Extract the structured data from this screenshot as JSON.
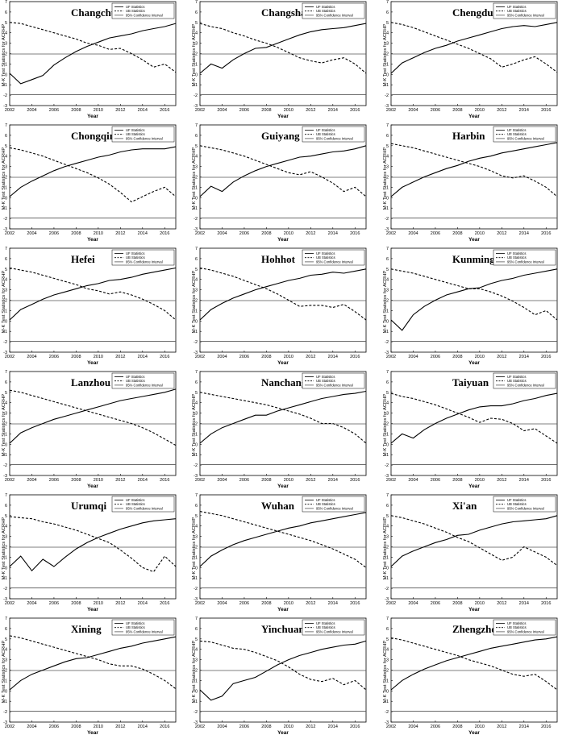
{
  "chart_data": {
    "layout": "grid",
    "rows": 6,
    "cols": 3,
    "shared": {
      "type": "line",
      "xlabel": "Year",
      "ylabel": "M-K Test Statistics for ACRHP",
      "xlim": [
        2002,
        2017
      ],
      "ylim": [
        -3,
        7
      ],
      "xticks": [
        2002,
        2004,
        2006,
        2008,
        2010,
        2012,
        2014,
        2016
      ],
      "yticks": [
        -3,
        -2,
        -1,
        0,
        1,
        2,
        3,
        4,
        5,
        6,
        7
      ],
      "confidence_levels": [
        1.96,
        -1.96
      ],
      "legend": [
        "UF Statistics",
        "UB Statistics",
        "95% Confidence Interval"
      ],
      "legend_position": "top-right",
      "colors": {
        "line": "#000000",
        "axis": "#000000",
        "confidence": "#555555"
      }
    },
    "charts": [
      {
        "title": "Changchun",
        "x": [
          2002,
          2003,
          2004,
          2005,
          2006,
          2007,
          2008,
          2009,
          2010,
          2011,
          2012,
          2013,
          2014,
          2015,
          2016,
          2017
        ],
        "uf": [
          0.1,
          -0.9,
          -0.5,
          -0.1,
          0.9,
          1.6,
          2.2,
          2.7,
          3.1,
          3.5,
          3.7,
          3.9,
          4.2,
          4.4,
          4.6,
          4.9
        ],
        "ub": [
          5.0,
          4.9,
          4.6,
          4.3,
          4.0,
          3.7,
          3.4,
          3.0,
          2.8,
          2.4,
          2.5,
          2.0,
          1.4,
          0.7,
          1.0,
          0.2
        ]
      },
      {
        "title": "Changsha",
        "x": [
          2002,
          2003,
          2004,
          2005,
          2006,
          2007,
          2008,
          2009,
          2010,
          2011,
          2012,
          2013,
          2014,
          2015,
          2016,
          2017
        ],
        "uf": [
          0.1,
          1.0,
          0.6,
          1.4,
          2.0,
          2.5,
          2.6,
          3.0,
          3.4,
          3.8,
          4.1,
          4.3,
          4.4,
          4.5,
          4.7,
          4.9
        ],
        "ub": [
          4.9,
          4.6,
          4.4,
          4.0,
          3.7,
          3.3,
          3.0,
          2.6,
          2.1,
          1.6,
          1.3,
          1.1,
          1.4,
          1.6,
          1.0,
          0.1
        ]
      },
      {
        "title": "Chengdu",
        "x": [
          2002,
          2003,
          2004,
          2005,
          2006,
          2007,
          2008,
          2009,
          2010,
          2011,
          2012,
          2013,
          2014,
          2015,
          2016,
          2017
        ],
        "uf": [
          0.1,
          1.1,
          1.6,
          2.1,
          2.5,
          2.8,
          3.2,
          3.5,
          3.8,
          4.1,
          4.4,
          4.6,
          4.7,
          4.6,
          4.8,
          5.0
        ],
        "ub": [
          5.0,
          4.8,
          4.5,
          4.1,
          3.7,
          3.3,
          2.9,
          2.5,
          2.0,
          1.5,
          0.7,
          1.0,
          1.4,
          1.7,
          1.0,
          0.2
        ]
      },
      {
        "title": "Chongqing",
        "x": [
          2002,
          2003,
          2004,
          2005,
          2006,
          2007,
          2008,
          2009,
          2010,
          2011,
          2012,
          2013,
          2014,
          2015,
          2016,
          2017
        ],
        "uf": [
          0.1,
          1.0,
          1.6,
          2.1,
          2.6,
          3.0,
          3.3,
          3.6,
          3.9,
          4.1,
          4.4,
          4.6,
          4.7,
          4.7,
          4.7,
          4.9
        ],
        "ub": [
          4.8,
          4.6,
          4.3,
          4.0,
          3.6,
          3.2,
          2.8,
          2.4,
          1.9,
          1.3,
          0.5,
          -0.4,
          0.1,
          0.6,
          1.0,
          0.1
        ]
      },
      {
        "title": "Guiyang",
        "x": [
          2002,
          2003,
          2004,
          2005,
          2006,
          2007,
          2008,
          2009,
          2010,
          2011,
          2012,
          2013,
          2014,
          2015,
          2016,
          2017
        ],
        "uf": [
          0.1,
          1.1,
          0.6,
          1.5,
          2.1,
          2.6,
          3.0,
          3.3,
          3.6,
          3.9,
          4.0,
          4.2,
          4.4,
          4.5,
          4.7,
          5.0
        ],
        "ub": [
          5.0,
          4.8,
          4.6,
          4.3,
          4.0,
          3.6,
          3.2,
          2.8,
          2.4,
          2.2,
          2.5,
          2.0,
          1.4,
          0.6,
          1.0,
          0.1
        ]
      },
      {
        "title": "Harbin",
        "x": [
          2002,
          2003,
          2004,
          2005,
          2006,
          2007,
          2008,
          2009,
          2010,
          2011,
          2012,
          2013,
          2014,
          2015,
          2016,
          2017
        ],
        "uf": [
          0.1,
          1.0,
          1.5,
          2.0,
          2.4,
          2.8,
          3.1,
          3.5,
          3.8,
          4.0,
          4.3,
          4.5,
          4.7,
          4.9,
          5.1,
          5.3
        ],
        "ub": [
          5.2,
          5.0,
          4.8,
          4.5,
          4.2,
          3.9,
          3.6,
          3.3,
          3.0,
          2.6,
          2.1,
          1.9,
          2.1,
          1.6,
          1.0,
          0.1
        ]
      },
      {
        "title": "Hefei",
        "x": [
          2002,
          2003,
          2004,
          2005,
          2006,
          2007,
          2008,
          2009,
          2010,
          2011,
          2012,
          2013,
          2014,
          2015,
          2016,
          2017
        ],
        "uf": [
          0.1,
          1.1,
          1.6,
          2.1,
          2.5,
          2.8,
          3.1,
          3.4,
          3.6,
          3.9,
          4.0,
          4.2,
          4.5,
          4.7,
          4.9,
          5.1
        ],
        "ub": [
          5.1,
          4.9,
          4.7,
          4.4,
          4.1,
          3.8,
          3.5,
          3.1,
          2.9,
          2.6,
          2.8,
          2.5,
          2.1,
          1.6,
          1.0,
          0.1
        ]
      },
      {
        "title": "Hohhot",
        "x": [
          2002,
          2003,
          2004,
          2005,
          2006,
          2007,
          2008,
          2009,
          2010,
          2011,
          2012,
          2013,
          2014,
          2015,
          2016,
          2017
        ],
        "uf": [
          0.1,
          1.1,
          1.7,
          2.2,
          2.6,
          3.0,
          3.3,
          3.6,
          3.9,
          4.1,
          4.4,
          4.5,
          4.7,
          4.6,
          4.8,
          5.0
        ],
        "ub": [
          5.1,
          4.9,
          4.6,
          4.3,
          3.9,
          3.5,
          3.1,
          2.6,
          2.0,
          1.4,
          1.5,
          1.5,
          1.3,
          1.6,
          0.9,
          0.1
        ]
      },
      {
        "title": "Kunming",
        "x": [
          2002,
          2003,
          2004,
          2005,
          2006,
          2007,
          2008,
          2009,
          2010,
          2011,
          2012,
          2013,
          2014,
          2015,
          2016,
          2017
        ],
        "uf": [
          0.1,
          -0.9,
          0.6,
          1.4,
          2.0,
          2.5,
          2.8,
          3.1,
          3.2,
          3.6,
          3.9,
          4.1,
          4.4,
          4.6,
          4.8,
          5.0
        ],
        "ub": [
          5.0,
          4.8,
          4.6,
          4.3,
          4.0,
          3.7,
          3.4,
          3.1,
          3.1,
          2.8,
          2.4,
          1.9,
          1.3,
          0.6,
          1.0,
          0.1
        ]
      },
      {
        "title": "Lanzhou",
        "x": [
          2002,
          2003,
          2004,
          2005,
          2006,
          2007,
          2008,
          2009,
          2010,
          2011,
          2012,
          2013,
          2014,
          2015,
          2016,
          2017
        ],
        "uf": [
          0.1,
          1.1,
          1.6,
          2.0,
          2.4,
          2.7,
          3.0,
          3.3,
          3.6,
          3.9,
          4.2,
          4.4,
          4.6,
          4.8,
          5.0,
          5.3
        ],
        "ub": [
          5.2,
          5.0,
          4.7,
          4.4,
          4.1,
          3.8,
          3.5,
          3.2,
          2.9,
          2.6,
          2.3,
          2.0,
          1.6,
          1.1,
          0.5,
          -0.1
        ]
      },
      {
        "title": "Nanchang",
        "x": [
          2002,
          2003,
          2004,
          2005,
          2006,
          2007,
          2008,
          2009,
          2010,
          2011,
          2012,
          2013,
          2014,
          2015,
          2016,
          2017
        ],
        "uf": [
          0.1,
          1.0,
          1.6,
          2.0,
          2.4,
          2.8,
          2.8,
          3.2,
          3.5,
          3.8,
          4.1,
          4.4,
          4.6,
          4.8,
          4.9,
          5.1
        ],
        "ub": [
          5.0,
          4.8,
          4.6,
          4.4,
          4.2,
          4.0,
          3.8,
          3.5,
          3.2,
          2.9,
          2.5,
          2.0,
          2.0,
          1.6,
          1.0,
          0.1
        ]
      },
      {
        "title": "Taiyuan",
        "x": [
          2002,
          2003,
          2004,
          2005,
          2006,
          2007,
          2008,
          2009,
          2010,
          2011,
          2012,
          2013,
          2014,
          2015,
          2016,
          2017
        ],
        "uf": [
          0.1,
          1.0,
          0.6,
          1.4,
          2.0,
          2.5,
          2.9,
          3.3,
          3.6,
          3.7,
          3.7,
          3.9,
          4.2,
          4.4,
          4.7,
          4.9
        ],
        "ub": [
          4.9,
          4.6,
          4.4,
          4.1,
          3.8,
          3.4,
          3.0,
          2.6,
          2.1,
          2.5,
          2.4,
          2.0,
          1.3,
          1.5,
          0.8,
          0.1
        ]
      },
      {
        "title": "Urumqi",
        "x": [
          2002,
          2003,
          2004,
          2005,
          2006,
          2007,
          2008,
          2009,
          2010,
          2011,
          2012,
          2013,
          2014,
          2015,
          2016,
          2017
        ],
        "uf": [
          0.1,
          1.1,
          -0.3,
          0.8,
          0.1,
          1.0,
          1.8,
          2.4,
          2.9,
          3.3,
          3.7,
          4.0,
          4.3,
          4.5,
          4.6,
          4.7
        ],
        "ub": [
          4.9,
          4.8,
          4.7,
          4.4,
          4.2,
          3.9,
          3.6,
          3.2,
          2.8,
          2.4,
          1.7,
          0.9,
          0.0,
          -0.4,
          1.1,
          0.1
        ]
      },
      {
        "title": "Wuhan",
        "x": [
          2002,
          2003,
          2004,
          2005,
          2006,
          2007,
          2008,
          2009,
          2010,
          2011,
          2012,
          2013,
          2014,
          2015,
          2016,
          2017
        ],
        "uf": [
          0.1,
          1.1,
          1.7,
          2.2,
          2.6,
          2.9,
          3.2,
          3.5,
          3.8,
          4.0,
          4.3,
          4.5,
          4.7,
          4.9,
          5.1,
          5.3
        ],
        "ub": [
          5.4,
          5.2,
          5.0,
          4.7,
          4.4,
          4.1,
          3.8,
          3.5,
          3.2,
          2.9,
          2.6,
          2.2,
          1.8,
          1.3,
          0.8,
          0.0
        ]
      },
      {
        "title": "Xi'an",
        "x": [
          2002,
          2003,
          2004,
          2005,
          2006,
          2007,
          2008,
          2009,
          2010,
          2011,
          2012,
          2013,
          2014,
          2015,
          2016,
          2017
        ],
        "uf": [
          0.1,
          1.1,
          1.6,
          2.0,
          2.4,
          2.7,
          3.1,
          3.2,
          3.6,
          3.9,
          4.2,
          4.4,
          4.5,
          4.6,
          4.7,
          5.0
        ],
        "ub": [
          5.0,
          4.8,
          4.5,
          4.2,
          3.8,
          3.4,
          2.9,
          2.5,
          1.9,
          1.3,
          0.7,
          1.0,
          2.0,
          1.5,
          1.0,
          0.2
        ]
      },
      {
        "title": "Xining",
        "x": [
          2002,
          2003,
          2004,
          2005,
          2006,
          2007,
          2008,
          2009,
          2010,
          2011,
          2012,
          2013,
          2014,
          2015,
          2016,
          2017
        ],
        "uf": [
          0.1,
          1.0,
          1.6,
          2.0,
          2.4,
          2.8,
          3.1,
          3.2,
          3.5,
          3.8,
          4.1,
          4.3,
          4.6,
          4.8,
          5.0,
          5.2
        ],
        "ub": [
          5.3,
          5.1,
          4.8,
          4.5,
          4.2,
          3.9,
          3.6,
          3.3,
          3.0,
          2.6,
          2.4,
          2.4,
          2.1,
          1.6,
          1.0,
          0.2
        ]
      },
      {
        "title": "Yinchuan",
        "x": [
          2002,
          2003,
          2004,
          2005,
          2006,
          2007,
          2008,
          2009,
          2010,
          2011,
          2012,
          2013,
          2014,
          2015,
          2016,
          2017
        ],
        "uf": [
          0.1,
          -0.9,
          -0.5,
          0.7,
          1.0,
          1.3,
          1.9,
          2.5,
          3.0,
          3.4,
          3.7,
          4.0,
          4.2,
          4.4,
          4.5,
          4.8
        ],
        "ub": [
          4.8,
          4.7,
          4.4,
          4.1,
          4.0,
          3.7,
          3.3,
          2.9,
          2.3,
          1.6,
          1.1,
          0.9,
          1.2,
          0.6,
          1.0,
          0.1
        ]
      },
      {
        "title": "Zhengzhou",
        "x": [
          2002,
          2003,
          2004,
          2005,
          2006,
          2007,
          2008,
          2009,
          2010,
          2011,
          2012,
          2013,
          2014,
          2015,
          2016,
          2017
        ],
        "uf": [
          0.1,
          1.0,
          1.6,
          2.1,
          2.5,
          2.9,
          3.2,
          3.5,
          3.8,
          4.1,
          4.3,
          4.5,
          4.7,
          4.9,
          5.0,
          5.2
        ],
        "ub": [
          5.1,
          4.9,
          4.6,
          4.3,
          4.0,
          3.7,
          3.4,
          3.0,
          2.7,
          2.4,
          2.0,
          1.6,
          1.4,
          1.6,
          0.9,
          0.1
        ]
      }
    ]
  }
}
